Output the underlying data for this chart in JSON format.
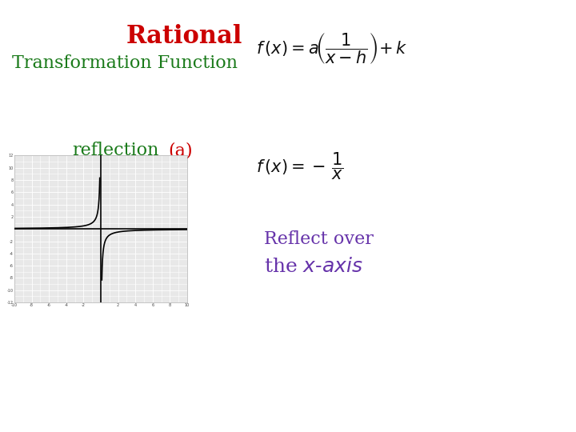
{
  "title": "Rational",
  "title_color": "#cc0000",
  "subtitle": "Transformation Function",
  "subtitle_color": "#1a7a1a",
  "reflection_label": "reflection",
  "reflection_label_color": "#1a7a1a",
  "a_label": "(a)",
  "a_label_color": "#cc0000",
  "reflect_text": "Reflect over",
  "reflect_text_color": "#6633aa",
  "axis_label_color": "#6633aa",
  "bg_color": "#ffffff",
  "graph_xlim": [
    -10,
    10
  ],
  "graph_ylim": [
    -12,
    12
  ],
  "graph_bg": "#e8e8e8",
  "graph_grid_color": "#ffffff",
  "graph_curve_color": "#000000",
  "graph_axis_color": "#000000"
}
